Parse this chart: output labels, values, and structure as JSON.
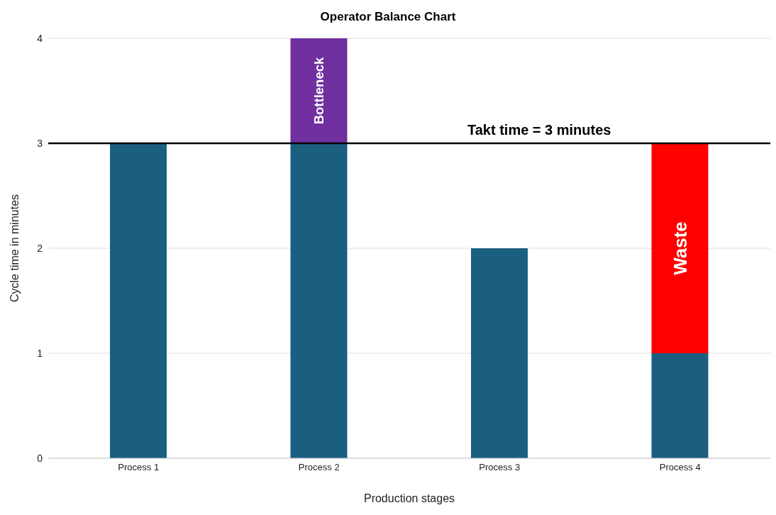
{
  "chart_data": {
    "type": "bar",
    "title": "Operator Balance Chart",
    "xlabel": "Production stages",
    "ylabel": "Cycle time in minutes",
    "categories": [
      "Process 1",
      "Process 2",
      "Process 3",
      "Process 4"
    ],
    "stacked": true,
    "series": [
      {
        "color": "#1b5f80",
        "values": [
          3,
          3,
          2,
          1
        ]
      },
      {
        "name": "Bottleneck",
        "color": "#7030a0",
        "values": [
          null,
          1,
          null,
          null
        ]
      },
      {
        "name": "Waste",
        "color": "#ff0000",
        "values": [
          null,
          null,
          null,
          2
        ]
      }
    ],
    "ylim": [
      0,
      4
    ],
    "yticks": [
      0,
      1,
      2,
      3,
      4
    ],
    "grid": "y",
    "legend": false,
    "ref_lines": [
      {
        "axis": "y",
        "value": 3,
        "label": "Takt time = 3 minutes",
        "color": "#000000"
      }
    ]
  }
}
